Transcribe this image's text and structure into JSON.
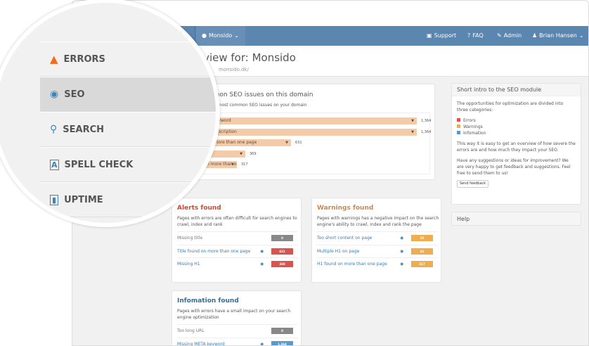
{
  "nav": {
    "site": "Monsido",
    "support": "Support",
    "faq": "FAQ",
    "admin": "Admin",
    "user": "Brian Hansen"
  },
  "header": {
    "title": "Overview for: Monsido",
    "url": "monsido.dk/"
  },
  "seo_panel": {
    "title": "Most common SEO issues on this domain",
    "subtitle": "Overview of the most common SEO issues on your domain",
    "issues": [
      {
        "label": "Missing META keyword",
        "value": "1,364",
        "n": 1364
      },
      {
        "label": "Missing META description",
        "value": "1,364",
        "n": 1364
      },
      {
        "label": "Title found on more than one page",
        "value": "631",
        "n": 631
      },
      {
        "label": "Missing H1",
        "value": "369",
        "n": 369
      },
      {
        "label": "H1 found on more than one page",
        "value": "317",
        "n": 317
      }
    ]
  },
  "alerts": {
    "title": "Alerts found",
    "desc": "Pages with errors are often difficult for search engines to crawl, index and rank",
    "rows": [
      {
        "label": "Missing title",
        "count": "0"
      },
      {
        "label": "Title found on more than one page",
        "count": "631"
      },
      {
        "label": "Missing H1",
        "count": "369"
      }
    ]
  },
  "warnings": {
    "title": "Warnings found",
    "desc": "Pages with warnings has a negative impact on the search engine's ability to crawl, index and rank the page",
    "rows": [
      {
        "label": "Too short content on page",
        "count": "30"
      },
      {
        "label": "Multiple H1 on page",
        "count": "42"
      },
      {
        "label": "H1 found on more than one page",
        "count": "317"
      }
    ]
  },
  "info": {
    "title": "Infomation found",
    "desc": "Pages with errors have a small impact on your search engine optimization",
    "rows": [
      {
        "label": "Too long URL",
        "count": "0"
      },
      {
        "label": "Missing META keyword",
        "count": "1,364"
      }
    ]
  },
  "intro": {
    "title": "Short intro to the SEO module",
    "p1": "The opportunities for optimization are divided into three categories:",
    "legend": [
      "Errors",
      "Warnings",
      "Infomation"
    ],
    "p2": "This way it is easy to get an overview of how severe the errors are and how much they impact your SEO.",
    "p3": "Have any suggestions or ideas for improvement? We are very happy to get feedback and suggestions. Feel free to send them to us!",
    "button": "Send feedback"
  },
  "help": {
    "title": "Help"
  },
  "menu": [
    {
      "label": "ERRORS",
      "icon": "warning-icon"
    },
    {
      "label": "SEO",
      "icon": "eye-icon",
      "active": true
    },
    {
      "label": "SEARCH",
      "icon": "search-icon"
    },
    {
      "label": "SPELL CHECK",
      "icon": "spellcheck-icon"
    },
    {
      "label": "UPTIME",
      "icon": "chart-icon"
    }
  ],
  "colors": {
    "nav": "#5b86b0",
    "error": "#d9534f",
    "warning": "#f0ad4e",
    "info": "#5a9bc9",
    "neutral": "#888888",
    "bar": "#f3cba9"
  }
}
